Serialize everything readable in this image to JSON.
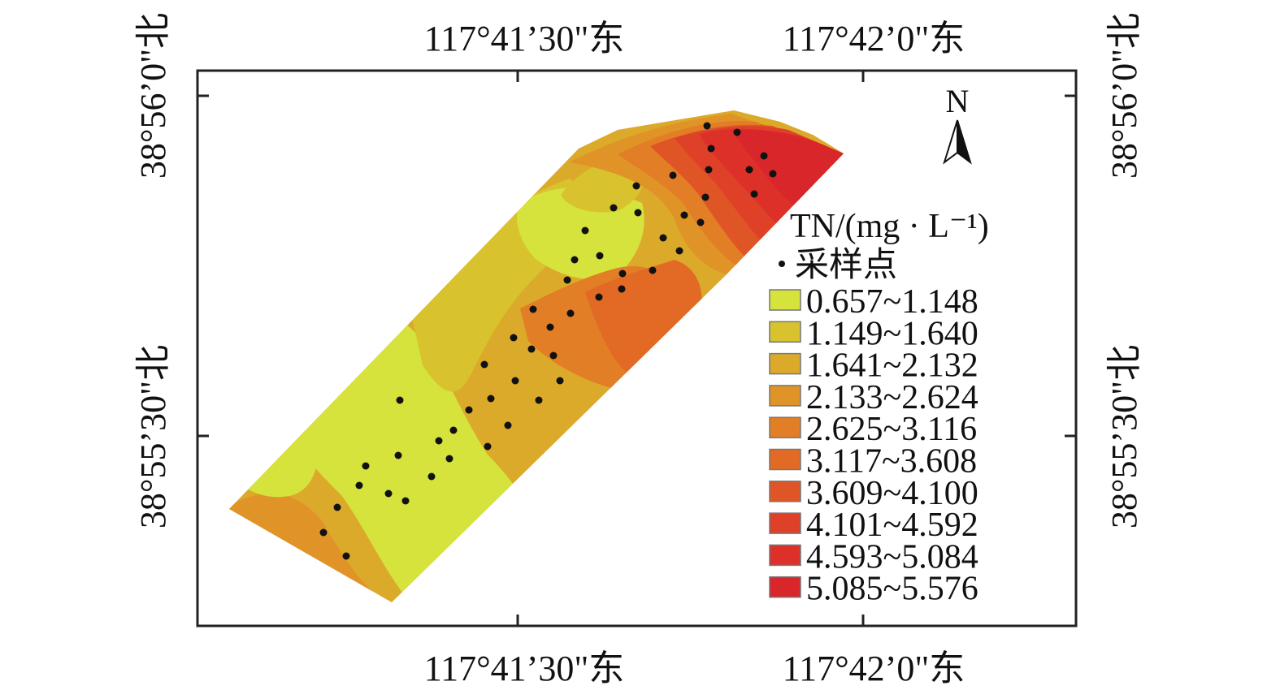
{
  "map": {
    "top_labels": [
      "117°41’30\"东",
      "117°42’0\"东"
    ],
    "bottom_labels": [
      "117°41’30\"东",
      "117°42’0\"东"
    ],
    "left_labels": [
      "38°56’0\"北",
      "38°55’30\"北"
    ],
    "right_labels": [
      "38°56’0\"北",
      "38°55’30\"北"
    ],
    "north_arrow": {
      "label": "N",
      "icon": "north-arrow-icon"
    }
  },
  "legend": {
    "title": "TN/(mg · L⁻¹)",
    "sample_label": "采样点",
    "sample_icon": "dot-icon",
    "classes": [
      {
        "label": "0.657~1.148",
        "color": "#d6e33c"
      },
      {
        "label": "1.149~1.640",
        "color": "#d8c32e"
      },
      {
        "label": "1.641~2.132",
        "color": "#dcaa2a"
      },
      {
        "label": "2.133~2.624",
        "color": "#e09428"
      },
      {
        "label": "2.625~3.116",
        "color": "#e27e26"
      },
      {
        "label": "3.117~3.608",
        "color": "#e26a24"
      },
      {
        "label": "3.609~4.100",
        "color": "#e05526"
      },
      {
        "label": "4.101~4.592",
        "color": "#de4128"
      },
      {
        "label": "4.593~5.084",
        "color": "#dc3029"
      },
      {
        "label": "5.085~5.576",
        "color": "#d9262a"
      }
    ]
  }
}
